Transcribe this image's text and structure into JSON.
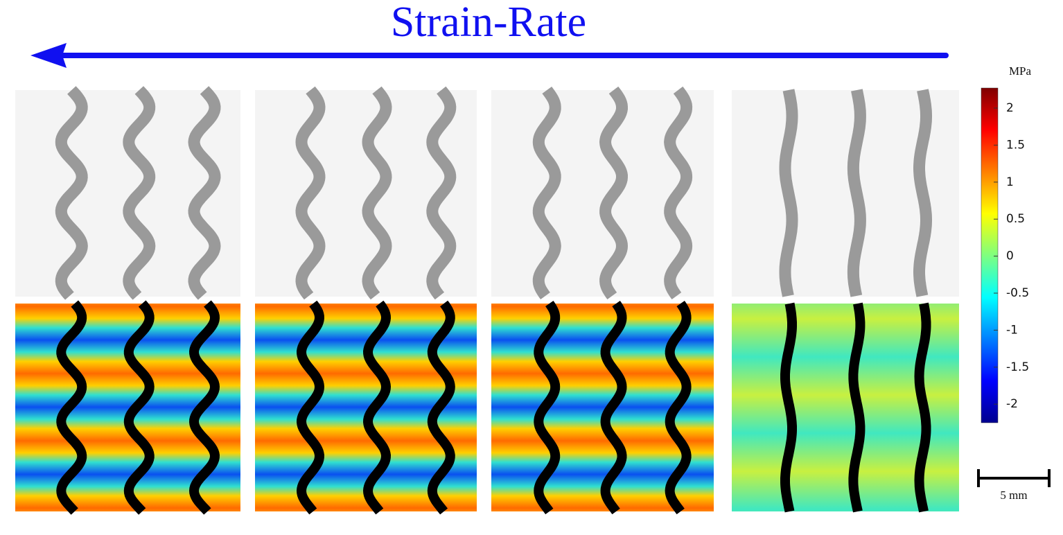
{
  "title": "Strain-Rate",
  "colorbar": {
    "unit": "MPa",
    "ticks": [
      2,
      1.5,
      1,
      0.5,
      0,
      -0.5,
      -1,
      -1.5,
      -2
    ]
  },
  "scale_bar": {
    "label": "5 mm"
  }
}
